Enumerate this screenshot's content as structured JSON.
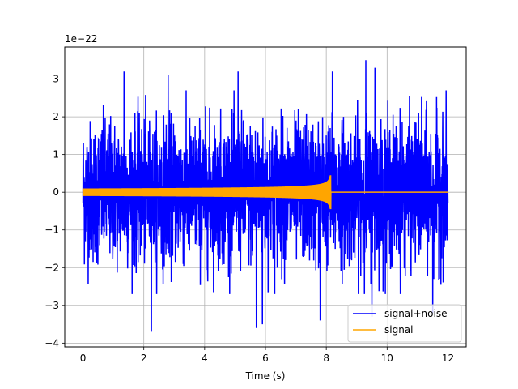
{
  "chart_data": {
    "type": "line",
    "title": "",
    "xlabel": "Time (s)",
    "ylabel": "",
    "y_offset_label": "1e−22",
    "xlim": [
      -0.6,
      12.6
    ],
    "ylim": [
      -4.1,
      3.85
    ],
    "x_ticks": [
      0,
      2,
      4,
      6,
      8,
      10,
      12
    ],
    "y_ticks": [
      -4,
      -3,
      -2,
      -1,
      0,
      1,
      2,
      3
    ],
    "y_tick_labels": [
      "−4",
      "−3",
      "−2",
      "−1",
      "0",
      "1",
      "2",
      "3"
    ],
    "grid": true,
    "legend_location": "lower right",
    "series": [
      {
        "name": "signal+noise",
        "color": "#0000ff",
        "x_range": [
          0,
          12
        ],
        "typical_amplitude": 1.5,
        "peaks": [
          {
            "x": 1.35,
            "y": 3.2
          },
          {
            "x": 2.8,
            "y": 3.1
          },
          {
            "x": 5.1,
            "y": 3.2
          },
          {
            "x": 8.2,
            "y": 3.2
          },
          {
            "x": 9.3,
            "y": 3.5
          },
          {
            "x": 9.6,
            "y": 3.3
          },
          {
            "x": 2.25,
            "y": -3.7
          },
          {
            "x": 5.7,
            "y": -3.6
          },
          {
            "x": 5.9,
            "y": -3.5
          },
          {
            "x": 7.8,
            "y": -3.4
          },
          {
            "x": 11.5,
            "y": -3.2
          },
          {
            "x": 9.5,
            "y": -3.3
          }
        ]
      },
      {
        "name": "signal",
        "color": "#ffa500",
        "x_range": [
          0,
          12
        ],
        "merger_time": 8.15,
        "start_amplitude": 0.1,
        "peak_amplitude_upper": 0.55,
        "peak_amplitude_lower": -0.45,
        "post_merger_value": 0.0
      }
    ]
  }
}
